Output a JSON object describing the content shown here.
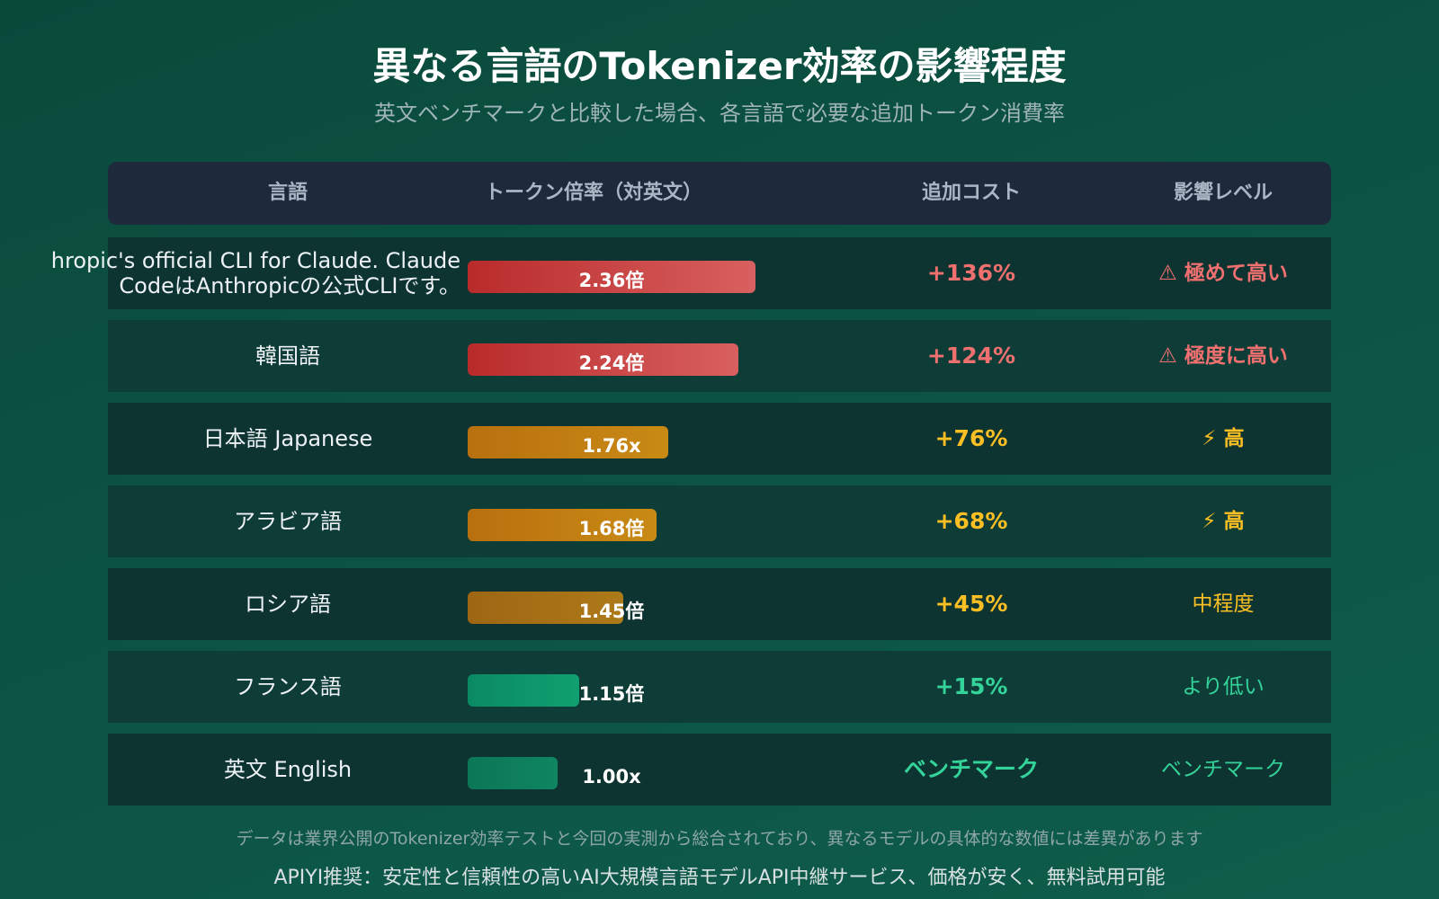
{
  "title": "異なる言語のTokenizer効率の影響程度",
  "subtitle": "英文ベンチマークと比較した場合、各言語で必要な追加トークン消費率",
  "overlay_text": "hropic's official CLI for Claude.  Claude CodeはAnthropicの公式CLIです。",
  "chart_data": {
    "type": "table",
    "columns": [
      "言語",
      "トークン倍率（対英文）",
      "追加コスト",
      "影響レベル"
    ],
    "rows": [
      {
        "language": "",
        "ratio": 2.36,
        "ratio_label": "2.36倍",
        "cost": "+136%",
        "level": "極めて高い",
        "level_icon": "warning-icon",
        "color": "#f07070",
        "bar_from": "#b92b2b",
        "bar_to": "#d96060"
      },
      {
        "language": "韓国語",
        "ratio": 2.24,
        "ratio_label": "2.24倍",
        "cost": "+124%",
        "level": "極度に高い",
        "level_icon": "warning-icon",
        "color": "#f07070",
        "bar_from": "#b92b2b",
        "bar_to": "#d96060"
      },
      {
        "language": "日本語 Japanese",
        "ratio": 1.76,
        "ratio_label": "1.76x",
        "cost": "+76%",
        "level": "高",
        "level_icon": "lightning-icon",
        "color": "#fbbf24",
        "bar_from": "#b8700f",
        "bar_to": "#c98a15"
      },
      {
        "language": "アラビア語",
        "ratio": 1.68,
        "ratio_label": "1.68倍",
        "cost": "+68%",
        "level": "高",
        "level_icon": "lightning-icon",
        "color": "#fbbf24",
        "bar_from": "#b8700f",
        "bar_to": "#c98a15"
      },
      {
        "language": "ロシア語",
        "ratio": 1.45,
        "ratio_label": "1.45倍",
        "cost": "+45%",
        "level": "中程度",
        "level_icon": "",
        "color": "#fbbf24",
        "bar_from": "#9e6614",
        "bar_to": "#ad7a18"
      },
      {
        "language": "フランス語",
        "ratio": 1.15,
        "ratio_label": "1.15倍",
        "cost": "+15%",
        "level": "より低い",
        "level_icon": "",
        "color": "#34d399",
        "bar_from": "#0b8a62",
        "bar_to": "#10a070"
      },
      {
        "language": "英文 English",
        "ratio": 1.0,
        "ratio_label": "1.00x",
        "cost": "ベンチマーク",
        "level": "ベンチマーク",
        "level_icon": "",
        "color": "#34d399",
        "bar_from": "#0c7656",
        "bar_to": "#0f8560"
      }
    ]
  },
  "footer": {
    "note": "データは業界公開のTokenizer効率テストと今回の実測から総合されており、異なるモデルの具体的な数値には差異があります",
    "promo": "APIYI推奨：安定性と信頼性の高いAI大規模言語モデルAPI中継サービス、価格が安く、無料試用可能"
  }
}
